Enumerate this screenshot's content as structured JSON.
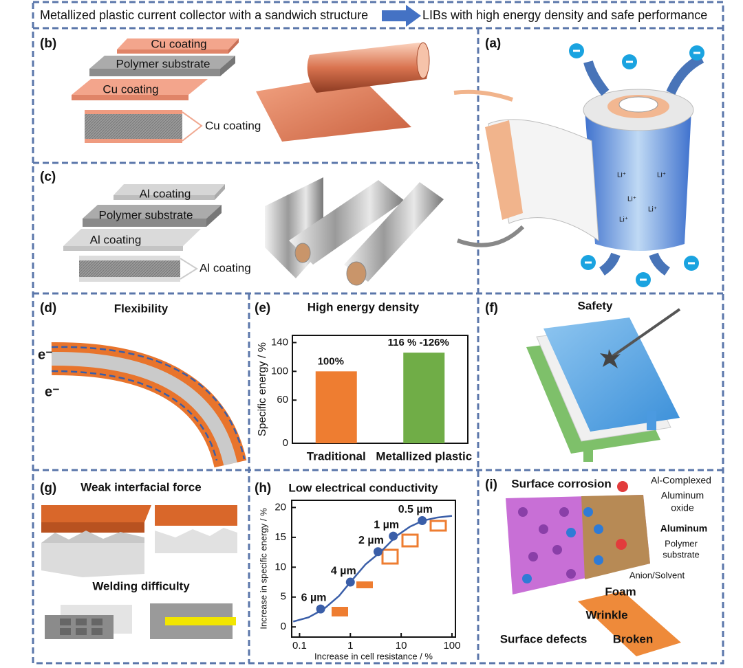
{
  "header": {
    "left": "Metallized plastic current collector with a sandwich structure",
    "right": "LIBs with high energy density and safe performance"
  },
  "panel_a": {
    "label": "(a)",
    "ion": "Li⁺"
  },
  "panel_b": {
    "label": "(b)",
    "layers": [
      "Cu coating",
      "Polymer substrate",
      "Cu coating"
    ],
    "callout": "Cu coating"
  },
  "panel_c": {
    "label": "(c)",
    "layers": [
      "Al coating",
      "Polymer substrate",
      "Al coating"
    ],
    "callout": "Al coating"
  },
  "panel_d": {
    "label": "(d)",
    "title": "Flexibility",
    "electron": "e⁻"
  },
  "panel_e": {
    "label": "(e)",
    "title": "High energy density",
    "chart": {
      "type": "bar",
      "ylabel": "Specific energy / %",
      "categories": [
        "Traditional",
        "Metallized plastic"
      ],
      "colors": [
        "#ee7d31",
        "#70ad47"
      ],
      "values": [
        100,
        126
      ],
      "value_labels": [
        "100%",
        "116 % -126%"
      ],
      "ylim": [
        0,
        150
      ],
      "yticks": [
        0,
        60,
        100,
        140
      ]
    }
  },
  "panel_f": {
    "label": "(f)",
    "title": "Safety"
  },
  "panel_g": {
    "label": "(g)",
    "title": "Weak interfacial force",
    "subtitle": "Welding difficulty"
  },
  "panel_h": {
    "label": "(h)",
    "title": "Low electrical conductivity",
    "chart": {
      "type": "line",
      "xlabel": "Increase in cell resistance / %",
      "ylabel": "Increase in specific energy / %",
      "xscale": "log",
      "color": "#3a5ea8",
      "x": [
        0.075,
        0.15,
        0.3,
        0.6,
        1,
        2,
        4,
        8,
        15,
        27,
        50,
        100
      ],
      "values": [
        0.9,
        1.6,
        3.0,
        5.2,
        7.5,
        10.5,
        12.6,
        15.2,
        16.8,
        17.8,
        18.3,
        18.6
      ],
      "points": {
        "x": [
          0.26,
          1,
          3.5,
          7,
          26
        ],
        "values": [
          3.0,
          7.5,
          12.6,
          15.2,
          17.8
        ],
        "labels": [
          "6 µm",
          "4 µm",
          "2 µm",
          "1 µm",
          "0.5 µm"
        ]
      },
      "xlim": [
        0.07,
        117
      ],
      "ylim": [
        -1.7,
        21.2
      ],
      "xticks": [
        0.1,
        1,
        10,
        100
      ],
      "yticks": [
        0,
        5,
        10,
        15,
        20
      ]
    }
  },
  "panel_i": {
    "label": "(i)",
    "title": "Surface corrosion",
    "complexed": "Al-Complexed",
    "oxide": [
      "Aluminum",
      "oxide"
    ],
    "aluminum": "Aluminum",
    "substrate": [
      "Polymer",
      "substrate"
    ],
    "anion": "Anion/Solvent",
    "defects": [
      "Foam",
      "Wrinkle",
      "Broken"
    ],
    "defects_title": "Surface defects"
  }
}
